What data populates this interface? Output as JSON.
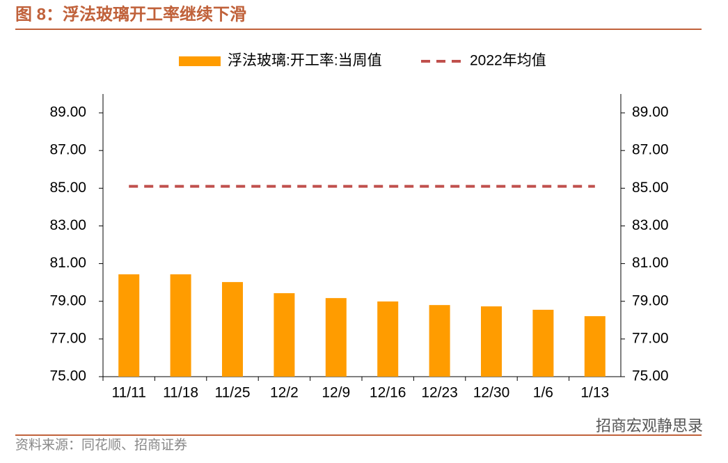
{
  "chart_data": {
    "type": "bar",
    "title": "图 8：浮法玻璃开工率继续下滑",
    "source": "资料来源：同花顺、招商证券",
    "watermark": "招商宏观静思录",
    "categories": [
      "11/11",
      "11/18",
      "11/25",
      "12/2",
      "12/9",
      "12/16",
      "12/23",
      "12/30",
      "1/6",
      "1/13"
    ],
    "series": [
      {
        "name": "浮法玻璃:开工率:当周值",
        "type": "bar",
        "color": "#ff9c00",
        "values": [
          80.43,
          80.43,
          80.02,
          79.43,
          79.17,
          78.99,
          78.8,
          78.73,
          78.55,
          78.21
        ]
      },
      {
        "name": "2022年均值",
        "type": "line",
        "color": "#c0504d",
        "values": [
          85.1,
          85.1,
          85.1,
          85.1,
          85.1,
          85.1,
          85.1,
          85.1,
          85.1,
          85.1
        ]
      }
    ],
    "ylim": [
      75,
      90
    ],
    "yticks": [
      {
        "value": 75,
        "label": "75.00"
      },
      {
        "value": 77,
        "label": "77.00"
      },
      {
        "value": 79,
        "label": "79.00"
      },
      {
        "value": 81,
        "label": "81.00"
      },
      {
        "value": 83,
        "label": "83.00"
      },
      {
        "value": 85,
        "label": "85.00"
      },
      {
        "value": 87,
        "label": "87.00"
      },
      {
        "value": 89,
        "label": "89.00"
      }
    ],
    "y2lim": [
      75,
      90
    ],
    "y2ticks": [
      {
        "value": 75,
        "label": "75.00"
      },
      {
        "value": 77,
        "label": "77.00"
      },
      {
        "value": 79,
        "label": "79.00"
      },
      {
        "value": 81,
        "label": "81.00"
      },
      {
        "value": 83,
        "label": "83.00"
      },
      {
        "value": 85,
        "label": "85.00"
      },
      {
        "value": 87,
        "label": "87.00"
      },
      {
        "value": 89,
        "label": "89.00"
      }
    ],
    "grid": false
  }
}
